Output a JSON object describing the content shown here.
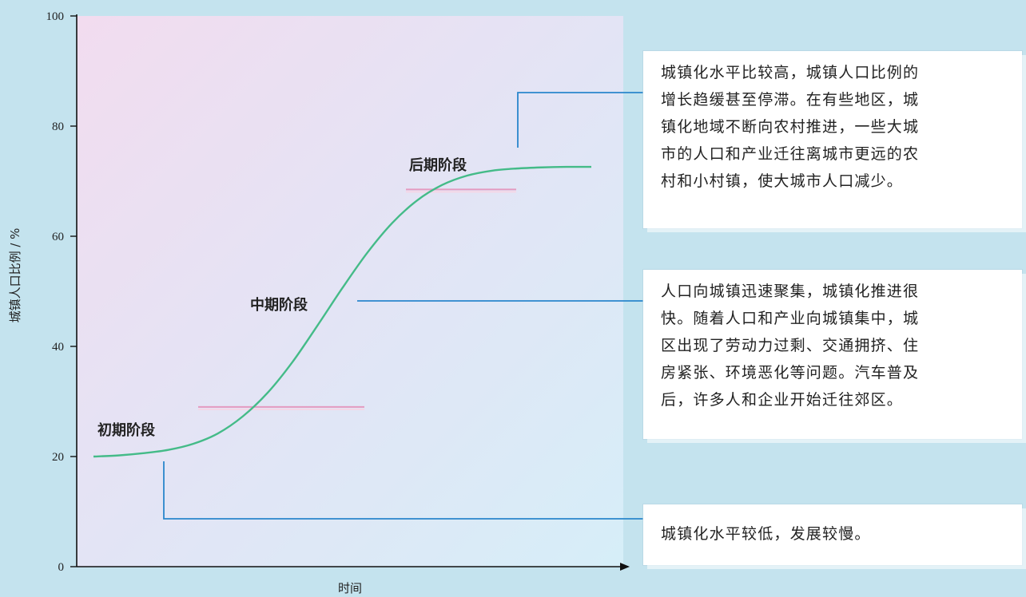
{
  "chart_data": {
    "type": "line",
    "xlabel": "时间",
    "ylabel": "城镇人口比例 / %",
    "ylim": [
      0,
      100
    ],
    "yticks": [
      0,
      20,
      40,
      60,
      80,
      100
    ],
    "grid": false,
    "series": [
      {
        "x": [
          0,
          5,
          10,
          15,
          20,
          25,
          30,
          35,
          40,
          45,
          50,
          55,
          60,
          65,
          70,
          75,
          80,
          85,
          90,
          95,
          100
        ],
        "values": [
          20,
          20.2,
          20.6,
          21.2,
          22.3,
          24.2,
          27.3,
          31.6,
          37.2,
          43.8,
          50.6,
          57.0,
          62.4,
          66.5,
          69.3,
          71.0,
          71.9,
          72.3,
          72.5,
          72.6,
          72.6
        ]
      }
    ],
    "color": "#44bb88",
    "annotations": [
      {
        "label": "初期阶段",
        "description": [
          "城镇化水平较低，发展较慢。"
        ]
      },
      {
        "label": "中期阶段",
        "description": [
          "人口向城镇迅速聚集，城镇化推进很",
          "快。随着人口和产业向城镇集中，城",
          "区出现了劳动力过剩、交通拥挤、住",
          "房紧张、环境恶化等问题。汽车普及",
          "后，许多人和企业开始迁往郊区。"
        ]
      },
      {
        "label": "后期阶段",
        "description": [
          "城镇化水平比较高，城镇人口比例的",
          "增长趋缓甚至停滞。在有些地区，城",
          "镇化地域不断向农村推进，一些大城",
          "市的人口和产业迁往离城市更远的农",
          "村和小村镇，使大城市人口减少。"
        ]
      }
    ],
    "stage_thresholds": [
      29,
      68.5
    ],
    "threshold_color": "#e49ac0",
    "connector_color": "#2a86cc"
  }
}
